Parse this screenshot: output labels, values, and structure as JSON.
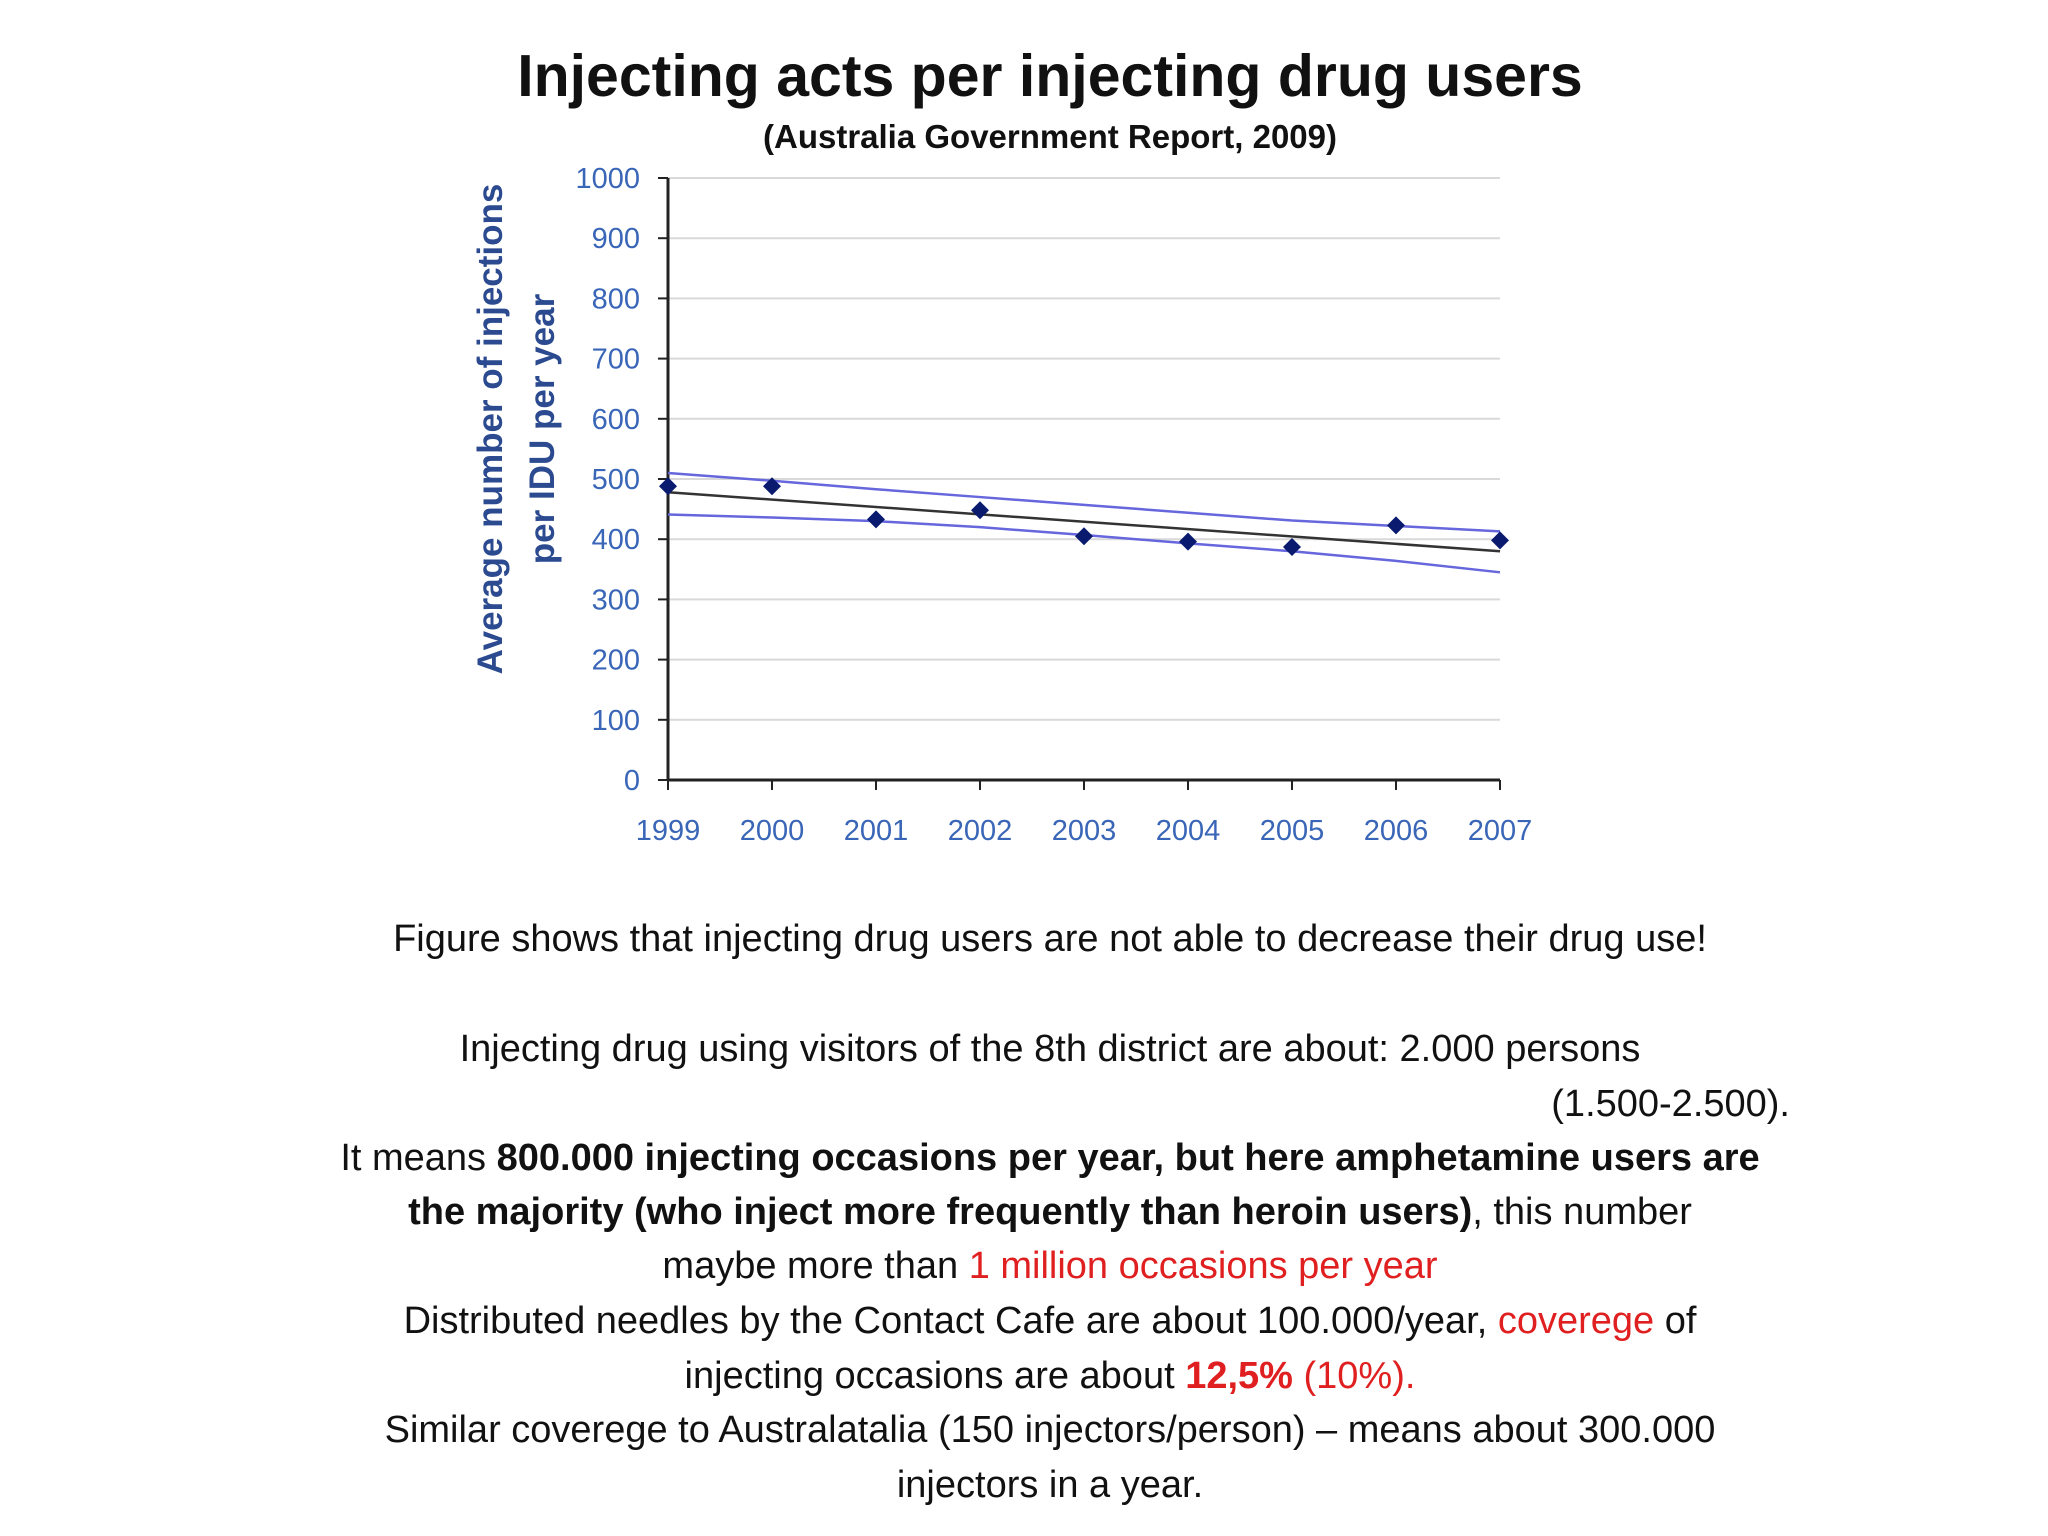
{
  "title": "Injecting acts per injecting drug users",
  "subtitle": "(Australia Government Report, 2009)",
  "chart_data": {
    "type": "scatter",
    "ylabel_line1": "Average number of injections",
    "ylabel_line2": "per IDU per year",
    "ylim": [
      0,
      1000
    ],
    "yticks": [
      0,
      100,
      200,
      300,
      400,
      500,
      600,
      700,
      800,
      900,
      1000
    ],
    "x": [
      1999,
      2000,
      2001,
      2002,
      2003,
      2004,
      2005,
      2006,
      2007
    ],
    "values": [
      488,
      488,
      433,
      448,
      405,
      396,
      387,
      423,
      398
    ],
    "trend": {
      "start": 478,
      "end": 380,
      "color": "#333333"
    },
    "upper_band": [
      510,
      497,
      483,
      470,
      457,
      444,
      431,
      422,
      413
    ],
    "lower_band": [
      441,
      436,
      430,
      420,
      407,
      393,
      380,
      364,
      345
    ],
    "band_color": "#6666dd",
    "point_color": "#0a1a6e",
    "grid": true
  },
  "text": {
    "line1": "Figure shows that injecting drug users  are not able to decrease their drug use!",
    "line2": "Injecting drug using visitors of the 8th district are about:  2.000 persons",
    "line3": "(1.500-2.500).",
    "line4_a": "It means ",
    "line4_b": "800.000 injecting occasions per year, but here amphetamine users are",
    "line5_a": "the majority (who inject more frequently than heroin users)",
    "line5_b": ", this number",
    "line6_a": "maybe more than ",
    "line6_b": "1 million occasions per year",
    "line7_a": "Distributed needles by the Contact Cafe are about  100.000/year, ",
    "line7_b": "coverege",
    "line7_c": " of",
    "line8_a": "injecting occasions are about ",
    "line8_b": "12,5%",
    "line8_c": " (10%).",
    "line9": "Similar coverege to Australatalia (150 injectors/person)   –  means about 300.000",
    "line10": "injectors in a year."
  }
}
